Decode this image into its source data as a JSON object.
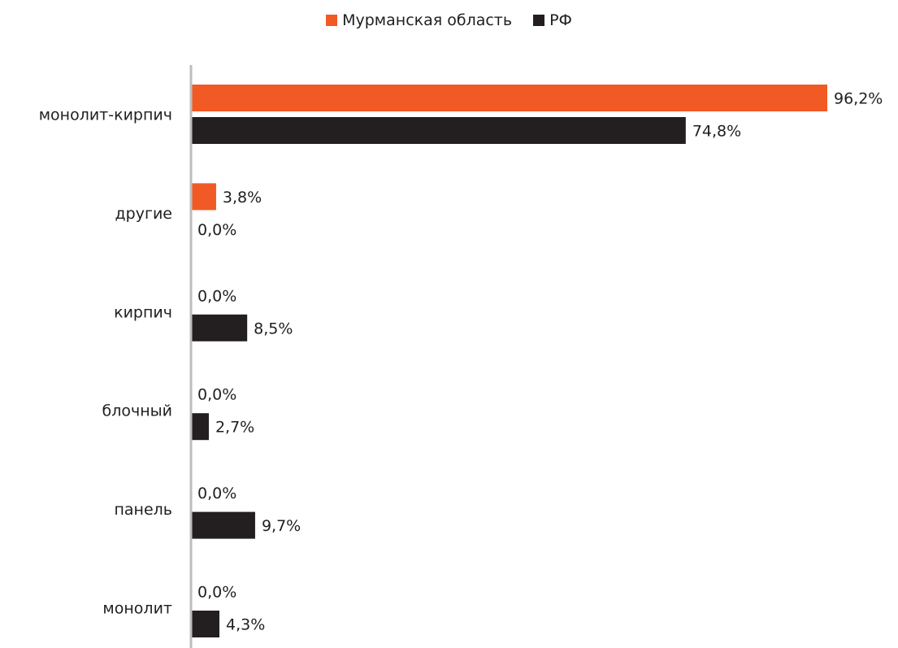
{
  "chart_data": {
    "type": "bar",
    "orientation": "horizontal",
    "categories": [
      "монолит-кирпич",
      "другие",
      "кирпич",
      "блочный",
      "панель",
      "монолит"
    ],
    "series": [
      {
        "name": "Мурманская область",
        "color": "#f15a24",
        "values": [
          96.2,
          3.8,
          0.0,
          0.0,
          0.0,
          0.0
        ],
        "labels": [
          "96,2%",
          "3,8%",
          "0,0%",
          "0,0%",
          "0,0%",
          "0,0%"
        ]
      },
      {
        "name": "РФ",
        "color": "#231f20",
        "values": [
          74.8,
          0.0,
          8.5,
          2.7,
          9.7,
          4.3
        ],
        "labels": [
          "74,8%",
          "0,0%",
          "8,5%",
          "2,7%",
          "9,7%",
          "4,3%"
        ]
      }
    ],
    "xlim": [
      0,
      100
    ],
    "legend_position": "top-center",
    "grid": false
  }
}
